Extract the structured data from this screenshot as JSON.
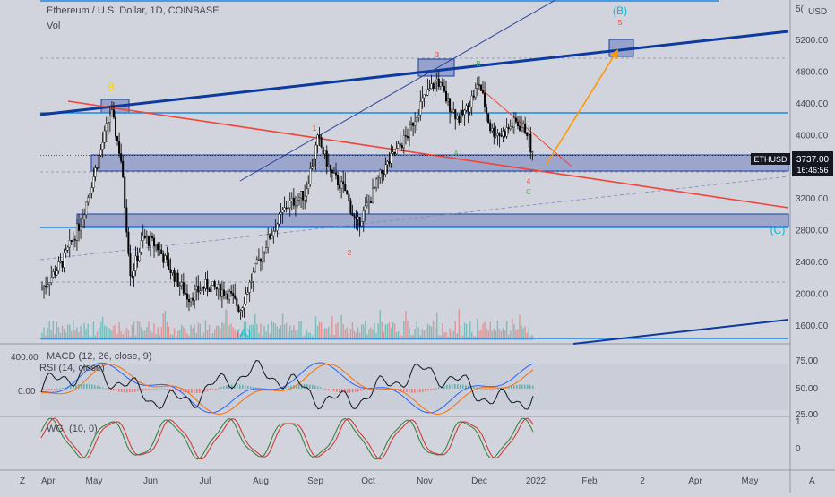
{
  "header": {
    "symbol_title": "Ethereum / U.S. Dollar, 1D, COINBASE",
    "volume_label": "Vol",
    "usd_label": "USD"
  },
  "price_axis": {
    "ticks": [
      "5200.00",
      "4800.00",
      "4400.00",
      "4000.00",
      "3600.00",
      "3200.00",
      "2800.00",
      "2400.00",
      "2000.00",
      "1600.00"
    ],
    "tick_values": [
      5200,
      4800,
      4400,
      4000,
      3600,
      3200,
      2800,
      2400,
      2000,
      1600
    ],
    "top_partial": "5("
  },
  "last_price": {
    "symbol": "ETHUSD",
    "price": "3737.00",
    "countdown": "16:46:56",
    "value": 3737
  },
  "time_axis": {
    "labels": [
      "Apr",
      "May",
      "Jun",
      "Jul",
      "Aug",
      "Sep",
      "Oct",
      "Nov",
      "Dec",
      "2022",
      "Feb",
      "2",
      "Apr",
      "May"
    ],
    "corner_left": "Z",
    "corner_right": "A"
  },
  "wave_labels": {
    "B_top": "B",
    "wave1": "1",
    "wave2": "2",
    "wave3": "3",
    "wave4": "4",
    "wave5": "5",
    "A_green": "A",
    "B_green": "B",
    "C_green": "C",
    "A_paren": "(A)",
    "B_paren": "(B)",
    "C_paren": "(C)"
  },
  "macd_panel": {
    "title": "MACD (12, 26, close, 9)",
    "ticks": [
      "400.00",
      "0.00"
    ]
  },
  "rsi_panel": {
    "title": "RSI (14, close)",
    "ticks": [
      "75.00",
      "50.00",
      "25.00"
    ]
  },
  "wgi_panel": {
    "title": "WGI (10, 0)",
    "ticks": [
      "1",
      "0"
    ]
  },
  "colors": {
    "background": "#d1d4dc",
    "candle": "#000000",
    "trend_blue": "#0d3a9e",
    "level_blue": "#1e88e5",
    "red_line": "#f44336",
    "arrow_orange": "#ff9800",
    "box_fill": "#5b6fb5",
    "wave_cyan": "#00bcd4",
    "wave_yellow": "#ffd600"
  },
  "chart_data": {
    "type": "line",
    "title": "Ethereum / U.S. Dollar, 1D, COINBASE",
    "x": [
      "Apr",
      "May",
      "Jun",
      "Jul",
      "Aug",
      "Sep",
      "Oct",
      "Nov",
      "Dec",
      "2022"
    ],
    "series": [
      {
        "values": [
          2050,
          4300,
          2700,
          2050,
          2700,
          3950,
          3400,
          4650,
          4100,
          3737
        ]
      }
    ],
    "ylim": [
      1500,
      5600
    ],
    "log_scale": false,
    "grid": false
  }
}
